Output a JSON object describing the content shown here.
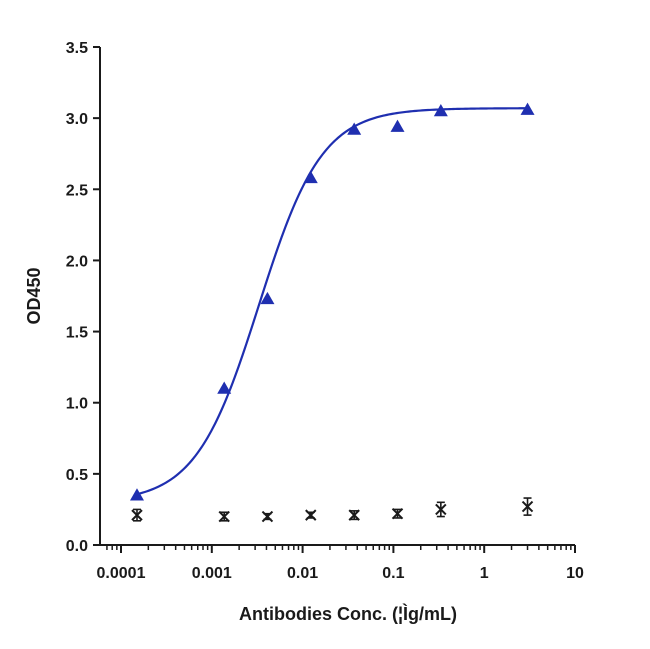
{
  "chart_data": {
    "type": "scatter",
    "title": "",
    "xlabel": "Antibodies Conc. (¦Ìg/mL)",
    "ylabel": "OD450",
    "xscale": "log",
    "xlim": [
      0.0001,
      10
    ],
    "ylim": [
      0.0,
      3.5
    ],
    "x_ticks": [
      0.0001,
      0.001,
      0.01,
      0.1,
      1,
      10
    ],
    "x_tick_labels": [
      "0.0001",
      "0.001",
      "0.01",
      "0.1",
      "1",
      "10"
    ],
    "y_ticks": [
      0.0,
      0.5,
      1.0,
      1.5,
      2.0,
      2.5,
      3.0,
      3.5
    ],
    "y_tick_labels": [
      "0.0",
      "0.5",
      "1.0",
      "1.5",
      "2.0",
      "2.5",
      "3.0",
      "3.5"
    ],
    "grid": false,
    "legend": "none",
    "series": [
      {
        "marker": "triangle",
        "color": "#1f2fb0",
        "fit": "4PL sigmoid",
        "x": [
          0.00015,
          0.00137,
          0.0041,
          0.0123,
          0.037,
          0.111,
          0.333,
          3.0
        ],
        "y": [
          0.35,
          1.1,
          1.73,
          2.58,
          2.92,
          2.94,
          3.05,
          3.06
        ]
      },
      {
        "marker": "cross",
        "color": "#1a1a1a",
        "x": [
          0.00015,
          0.00137,
          0.0041,
          0.0123,
          0.037,
          0.111,
          0.333,
          3.0
        ],
        "y": [
          0.21,
          0.2,
          0.2,
          0.21,
          0.21,
          0.22,
          0.25,
          0.27
        ],
        "yerr": [
          0.04,
          0.03,
          0.02,
          0.02,
          0.03,
          0.03,
          0.05,
          0.06
        ]
      }
    ]
  }
}
